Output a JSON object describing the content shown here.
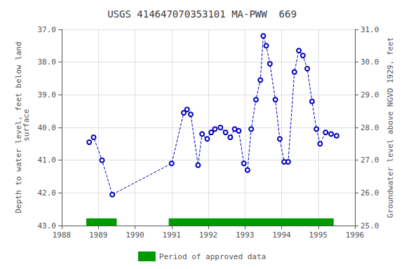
{
  "chart_data": {
    "type": "line",
    "title": "USGS 414647070353101 MA-PWW  669",
    "ylabel": "Depth to water level, feet below land\n surface",
    "y2label": "Groundwater level above NGVD 1929, feet",
    "x": [
      1988.75,
      1988.87,
      1989.1,
      1989.38,
      1991.0,
      1991.33,
      1991.42,
      1991.52,
      1991.72,
      1991.83,
      1991.97,
      1992.08,
      1992.18,
      1992.33,
      1992.47,
      1992.6,
      1992.72,
      1992.83,
      1992.97,
      1993.07,
      1993.17,
      1993.3,
      1993.42,
      1993.5,
      1993.58,
      1993.68,
      1993.83,
      1993.95,
      1994.07,
      1994.18,
      1994.35,
      1994.47,
      1994.58,
      1994.7,
      1994.83,
      1994.95,
      1995.05,
      1995.2,
      1995.35,
      1995.5
    ],
    "values": [
      40.45,
      40.3,
      41.0,
      42.05,
      41.1,
      39.55,
      39.45,
      39.6,
      41.15,
      40.2,
      40.35,
      40.15,
      40.05,
      40.0,
      40.15,
      40.3,
      40.05,
      40.1,
      41.1,
      41.3,
      40.05,
      39.15,
      38.55,
      37.2,
      37.5,
      38.05,
      39.15,
      40.35,
      41.05,
      41.05,
      38.3,
      37.65,
      37.8,
      38.2,
      39.2,
      40.05,
      40.5,
      40.15,
      40.2,
      40.25
    ],
    "color": "#0000bb",
    "marker": "hollow_circle",
    "line_style": "dashed",
    "xlim": [
      1988,
      1996
    ],
    "xticks": [
      1988,
      1989,
      1990,
      1991,
      1992,
      1993,
      1994,
      1995,
      1996
    ],
    "ylim": [
      43.0,
      37.0
    ],
    "yticks": [
      {
        "value": 37.0,
        "label": "37.0"
      },
      {
        "value": 38.0,
        "label": "38.0"
      },
      {
        "value": 39.0,
        "label": "39.0"
      },
      {
        "value": 40.0,
        "label": "40.0"
      },
      {
        "value": 41.0,
        "label": "41.0"
      },
      {
        "value": 42.0,
        "label": "42.0"
      },
      {
        "value": 43.0,
        "label": "43.0"
      }
    ],
    "y2lim": [
      25.0,
      31.0
    ],
    "y2ticks": [
      {
        "value": 31.0,
        "label": "31.0"
      },
      {
        "value": 30.0,
        "label": "30.0"
      },
      {
        "value": 29.0,
        "label": "29.0"
      },
      {
        "value": 28.0,
        "label": "28.0"
      },
      {
        "value": 27.0,
        "label": "27.0"
      },
      {
        "value": 26.0,
        "label": "26.0"
      },
      {
        "value": 25.0,
        "label": "25.0"
      }
    ],
    "approved_periods": {
      "name": "Period of approved data",
      "color": "#009900",
      "ranges": [
        [
          1988.67,
          1989.5
        ],
        [
          1990.92,
          1995.42
        ]
      ],
      "y": 43.0,
      "height": 0.22
    },
    "grid": true,
    "legend": "bottom"
  }
}
